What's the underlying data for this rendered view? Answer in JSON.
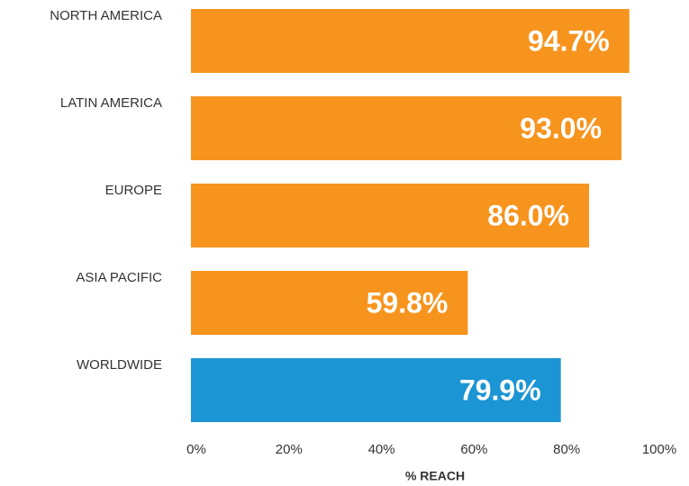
{
  "chart_data": {
    "type": "bar",
    "orientation": "horizontal",
    "categories": [
      "NORTH AMERICA",
      "LATIN AMERICA",
      "EUROPE",
      "ASIA PACIFIC",
      "WORLDWIDE"
    ],
    "values": [
      94.7,
      93.0,
      86.0,
      59.8,
      79.9
    ],
    "value_labels": [
      "94.7%",
      "93.0%",
      "86.0%",
      "59.8%",
      "79.9%"
    ],
    "colors": [
      "#f7941e",
      "#f7941e",
      "#f7941e",
      "#f7941e",
      "#1b95d3"
    ],
    "xlabel": "% REACH",
    "xlim": [
      0,
      100
    ],
    "xticks": [
      {
        "value": 0,
        "label": "0%"
      },
      {
        "value": 20,
        "label": "20%"
      },
      {
        "value": 40,
        "label": "40%"
      },
      {
        "value": 60,
        "label": "60%"
      },
      {
        "value": 80,
        "label": "80%"
      },
      {
        "value": 100,
        "label": "100%"
      }
    ],
    "grid": false
  }
}
